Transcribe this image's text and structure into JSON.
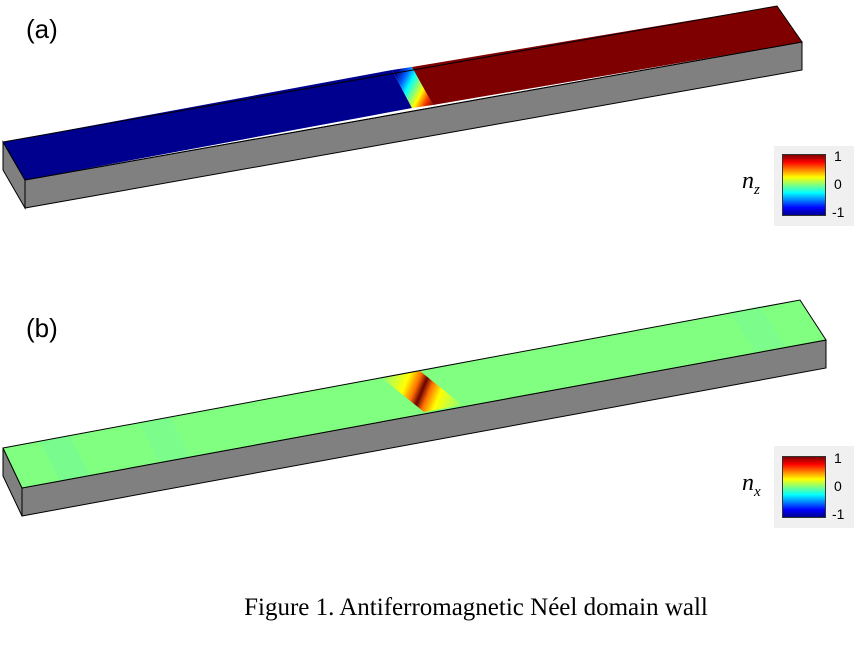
{
  "panels": [
    {
      "label": "(a)",
      "component": "n",
      "sub": "z",
      "ticks": [
        "1",
        "0",
        "-1"
      ]
    },
    {
      "label": "(b)",
      "component": "n",
      "sub": "x",
      "ticks": [
        "1",
        "0",
        "-1"
      ]
    }
  ],
  "caption": "Figure 1. Antiferromagnetic Néel domain wall",
  "colors": {
    "blue": "#00008f",
    "red": "#7f0000",
    "green": "#80ff80",
    "side": "#808080"
  }
}
